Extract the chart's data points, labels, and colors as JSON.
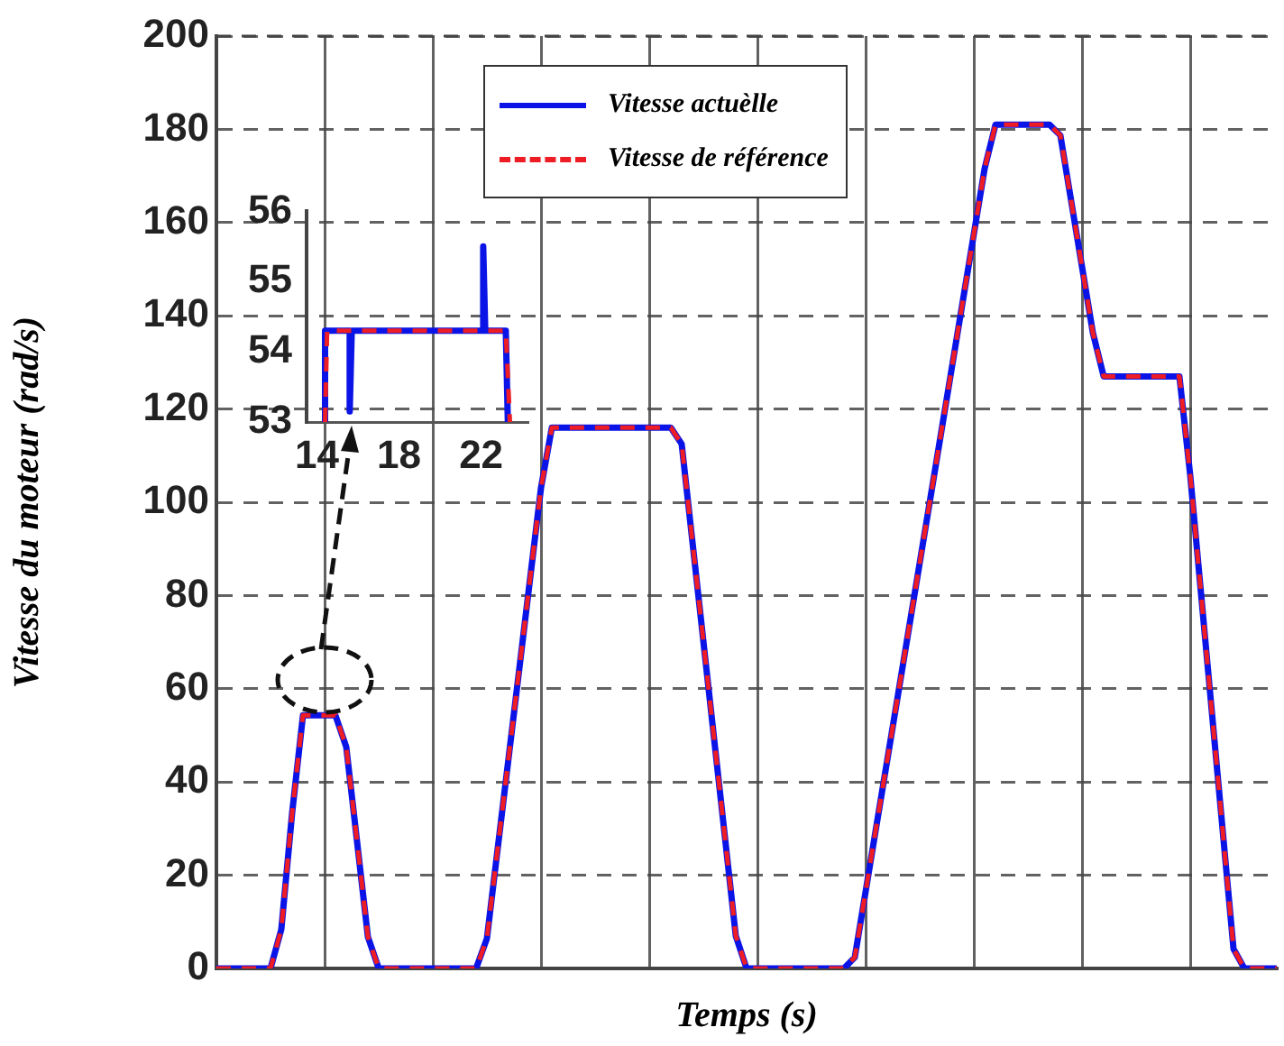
{
  "chart_data": [
    {
      "type": "line",
      "xlabel": "Temps (s)",
      "ylabel": "Vitesse du moteur (rad/s)",
      "categories": [
        null,
        null,
        null,
        null,
        null,
        null,
        null,
        null,
        null,
        null,
        null,
        null,
        null,
        null,
        null,
        null,
        null,
        null,
        null,
        null,
        null,
        null,
        null,
        null,
        null,
        null,
        null,
        null,
        null,
        null,
        null,
        null,
        null,
        null,
        null,
        null,
        null,
        null,
        null,
        null,
        null,
        null,
        null,
        null,
        null,
        null,
        null,
        null,
        null,
        null,
        null,
        null,
        null,
        null,
        null,
        null,
        null,
        null,
        null,
        null,
        null,
        null,
        null,
        null,
        null,
        null,
        null,
        null,
        null,
        null,
        null,
        null,
        null,
        null,
        null,
        null,
        null,
        null,
        null,
        null,
        null,
        null,
        null,
        null,
        null,
        null,
        null,
        null,
        null,
        null,
        null,
        null,
        null,
        null,
        null,
        null,
        null,
        null,
        null
      ],
      "series": [
        {
          "name": "Vitesse actuèlle",
          "color": "#0a14e6",
          "line_style": "solid",
          "values": [
            0,
            0,
            0,
            0,
            0,
            0,
            8.4,
            33.4,
            54.3,
            54.3,
            54.3,
            54.3,
            47.5,
            27.2,
            6.8,
            0,
            0,
            0,
            0,
            0,
            0,
            0,
            0,
            0,
            0,
            6.4,
            25.8,
            45.1,
            64.4,
            83.8,
            103.1,
            116,
            116,
            116,
            116,
            116,
            116,
            116,
            116,
            116,
            116,
            116,
            116,
            112.5,
            91.4,
            70.3,
            49.2,
            28.1,
            7.0,
            0,
            0,
            0,
            0,
            0,
            0,
            0,
            0,
            0,
            0,
            2.4,
            16.5,
            30.6,
            44.7,
            58.8,
            72.9,
            87.0,
            101.1,
            115.2,
            129.3,
            143.4,
            157.5,
            171.6,
            181,
            181,
            181,
            181,
            181,
            181,
            178.7,
            164.6,
            150.5,
            136.4,
            127,
            127,
            127,
            127,
            127,
            127,
            127,
            127,
            105.8,
            80.4,
            55.0,
            29.6,
            4.2,
            0,
            0,
            0,
            0
          ]
        },
        {
          "name": "Vitesse de référence",
          "color": "#ee1c24",
          "line_style": "dashed",
          "values": [
            0,
            0,
            0,
            0,
            0,
            0,
            8.4,
            33.4,
            54.3,
            54.3,
            54.3,
            54.3,
            47.5,
            27.2,
            6.8,
            0,
            0,
            0,
            0,
            0,
            0,
            0,
            0,
            0,
            0,
            6.4,
            25.8,
            45.1,
            64.4,
            83.8,
            103.1,
            116,
            116,
            116,
            116,
            116,
            116,
            116,
            116,
            116,
            116,
            116,
            116,
            112.5,
            91.4,
            70.3,
            49.2,
            28.1,
            7.0,
            0,
            0,
            0,
            0,
            0,
            0,
            0,
            0,
            0,
            0,
            2.4,
            16.5,
            30.6,
            44.7,
            58.8,
            72.9,
            87.0,
            101.1,
            115.2,
            129.3,
            143.4,
            157.5,
            171.6,
            181,
            181,
            181,
            181,
            181,
            181,
            178.7,
            164.6,
            150.5,
            136.4,
            127,
            127,
            127,
            127,
            127,
            127,
            127,
            127,
            105.8,
            80.4,
            55.0,
            29.6,
            4.2,
            0,
            0,
            0,
            0
          ]
        }
      ],
      "ylim": [
        0,
        200
      ],
      "yticks": [
        0,
        20,
        40,
        60,
        80,
        100,
        120,
        140,
        160,
        180,
        200
      ],
      "grid": true,
      "legend": "top",
      "tick_labels": "y"
    },
    {
      "type": "line",
      "series": [
        {
          "color": "#0a14e6",
          "line_style": "solid",
          "x": [
            14.4,
            14.4,
            15.6,
            15.6,
            15.7,
            22.1,
            22.1,
            22.2,
            23.2,
            23.3
          ],
          "values": [
            53,
            54.3,
            54.3,
            53.15,
            54.3,
            54.3,
            55.5,
            54.3,
            54.3,
            53
          ]
        },
        {
          "color": "#ee1c24",
          "line_style": "dashed",
          "x": [
            14.4,
            14.5,
            23.2,
            23.4
          ],
          "values": [
            53,
            54.3,
            54.3,
            53
          ]
        }
      ],
      "xlim": [
        13.5,
        24.3
      ],
      "xticks": [
        14,
        18,
        22
      ],
      "ylim": [
        53,
        56
      ],
      "yticks": [
        53,
        54,
        55,
        56
      ]
    }
  ]
}
